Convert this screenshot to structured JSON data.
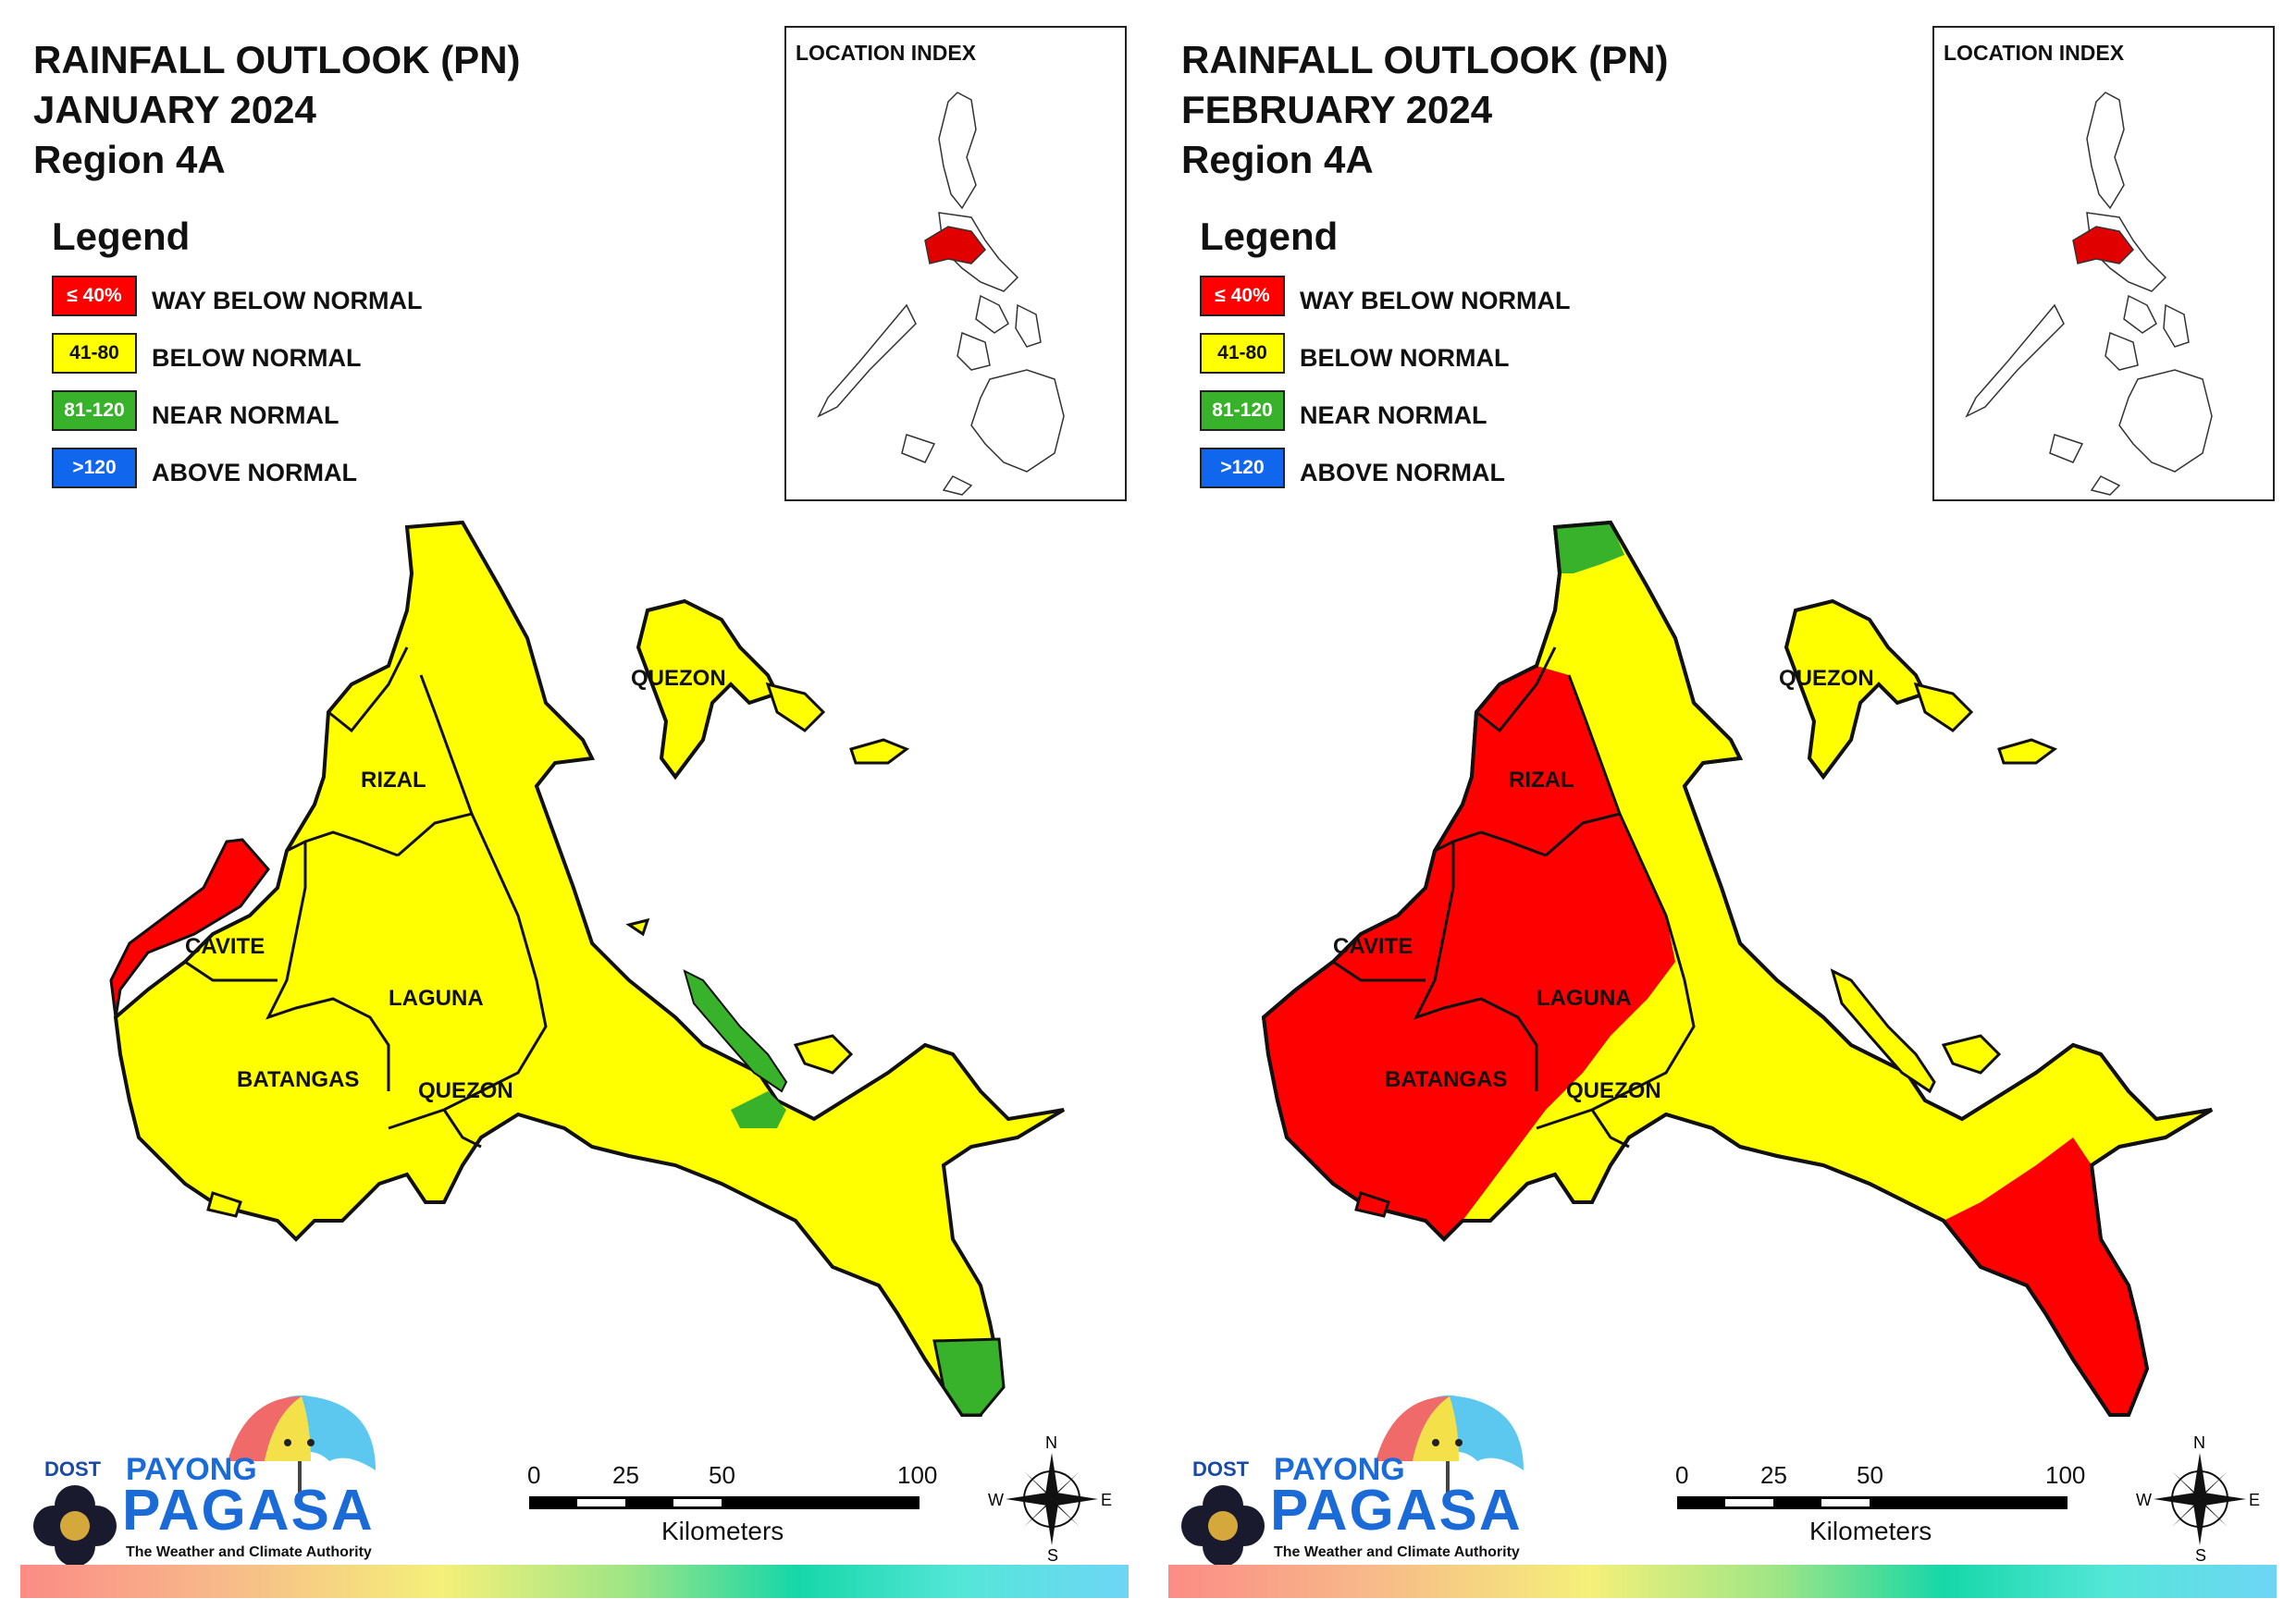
{
  "colors": {
    "way_below_normal": "#ff0000",
    "below_normal": "#ffff00",
    "near_normal": "#38b22a",
    "above_normal": "#1166ee",
    "location_highlight": "#e00000"
  },
  "legend": {
    "title": "Legend",
    "items": [
      {
        "swatch": "≤ 40%",
        "label": "WAY BELOW NORMAL",
        "class": "wbn"
      },
      {
        "swatch": "41-80",
        "label": "BELOW NORMAL",
        "class": "bn"
      },
      {
        "swatch": "81-120",
        "label": "NEAR NORMAL",
        "class": "nn"
      },
      {
        "swatch": ">120",
        "label": "ABOVE NORMAL",
        "class": "an"
      }
    ]
  },
  "location_index": {
    "title": "LOCATION INDEX"
  },
  "places": {
    "rizal": "RIZAL",
    "cavite": "CAVITE",
    "laguna": "LAGUNA",
    "batangas": "BATANGAS",
    "quezon_south": "QUEZON",
    "quezon_north": "QUEZON"
  },
  "scale": {
    "ticks": [
      "0",
      "25",
      "50",
      "100"
    ],
    "unit": "Kilometers"
  },
  "compass": {
    "n": "N",
    "s": "S",
    "e": "E",
    "w": "W",
    "icon": "compass-rose-icon"
  },
  "logo": {
    "dost": "DOST",
    "payong": "PAYONG",
    "pagasa": "PAGASA",
    "tagline": "The Weather and Climate Authority",
    "icon": "umbrella-icon"
  },
  "panels": [
    {
      "title_line1": "RAINFALL OUTLOOK (PN)",
      "title_line2": "JANUARY 2024",
      "title_line3": "Region 4A",
      "province_category": {
        "cavite": "mixed: way below normal (NW coast) / below normal",
        "rizal": "below normal",
        "laguna": "below normal",
        "batangas": "below normal",
        "quezon": "below normal with small near normal patches",
        "quezon_south_tip": "near normal"
      }
    },
    {
      "title_line1": "RAINFALL OUTLOOK (PN)",
      "title_line2": "FEBRUARY 2024",
      "title_line3": "Region 4A",
      "province_category": {
        "cavite": "way below normal",
        "rizal": "way below normal",
        "laguna": "way below normal",
        "batangas": "way below normal",
        "quezon": "below normal with way below normal south",
        "quezon_north_tip": "near normal"
      }
    }
  ]
}
